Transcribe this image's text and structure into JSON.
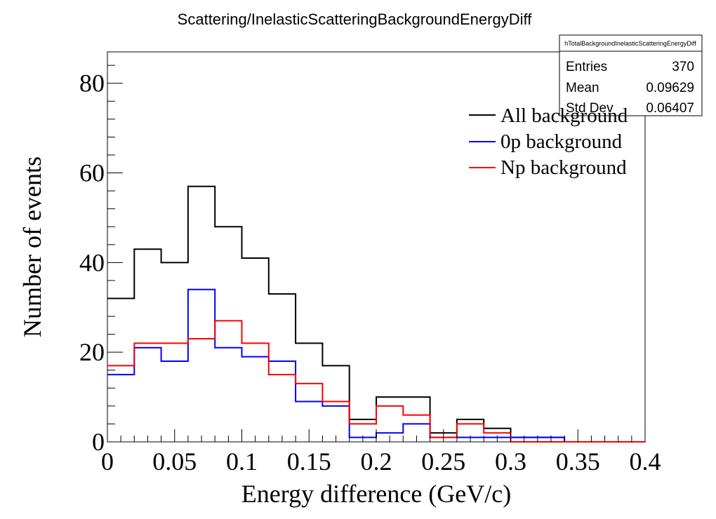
{
  "chart_data": {
    "type": "histogram",
    "title": "Scattering/InelasticScatteringBackgroundEnergyDiff",
    "xlabel": "Energy difference (GeV/c)",
    "ylabel": "Number of events",
    "xlim": [
      0,
      0.4
    ],
    "ylim": [
      0,
      87
    ],
    "x_ticks": [
      "0",
      "0.05",
      "0.1",
      "0.15",
      "0.2",
      "0.25",
      "0.3",
      "0.35",
      "0.4"
    ],
    "y_ticks": [
      "0",
      "20",
      "40",
      "60",
      "80"
    ],
    "bin_edges": [
      0,
      0.02,
      0.04,
      0.06,
      0.08,
      0.1,
      0.12,
      0.14,
      0.16,
      0.18,
      0.2,
      0.22,
      0.24,
      0.26,
      0.28,
      0.3,
      0.32,
      0.34,
      0.36,
      0.38,
      0.4
    ],
    "series": [
      {
        "name": "All background",
        "color": "#000000",
        "values": [
          32,
          43,
          40,
          57,
          48,
          41,
          33,
          22,
          17,
          5,
          10,
          10,
          2,
          5,
          3,
          1,
          1,
          0,
          0,
          0
        ]
      },
      {
        "name": "0p background",
        "color": "#0000ff",
        "values": [
          15,
          21,
          18,
          34,
          21,
          19,
          18,
          9,
          8,
          1,
          2,
          4,
          1,
          1,
          1,
          1,
          1,
          0,
          0,
          0
        ]
      },
      {
        "name": "Np background",
        "color": "#ff0000",
        "values": [
          17,
          22,
          22,
          23,
          27,
          22,
          15,
          13,
          9,
          4,
          8,
          6,
          1,
          4,
          2,
          0,
          0,
          0,
          0,
          0
        ]
      }
    ],
    "legend_position": "top-right",
    "stats_box": {
      "name": "hTotalBackgroundInelasticScatteringEnergyDiff",
      "rows": [
        {
          "label": "Entries",
          "value": "370"
        },
        {
          "label": "Mean",
          "value": "0.09629"
        },
        {
          "label": "Std Dev",
          "value": "0.06407"
        }
      ]
    }
  }
}
